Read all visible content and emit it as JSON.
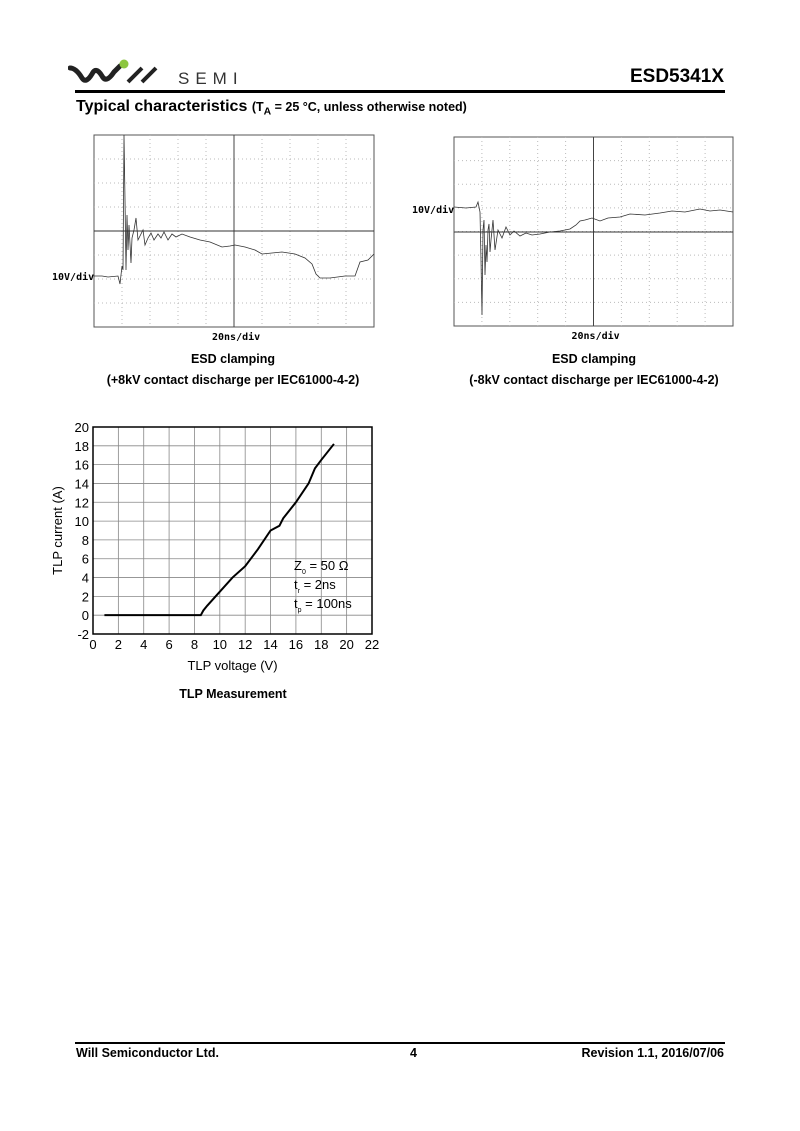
{
  "header": {
    "logo_text": "Will SEMI",
    "logo_semi": "SEMI",
    "part_number": "ESD5341X",
    "brand_color": "#8dc63f"
  },
  "section": {
    "title": "Typical characteristics",
    "condition_prefix": "(T",
    "condition_sub": "A",
    "condition_rest": " = 25 °C, unless otherwise noted)"
  },
  "scope_pos": {
    "vscale": "10V/div",
    "hscale": "20ns/div",
    "caption_line1": "ESD clamping",
    "caption_line2": "(+8kV contact discharge per IEC61000-4-2)"
  },
  "scope_neg": {
    "vscale": "10V/div",
    "hscale": "20ns/div",
    "caption_line1": "ESD clamping",
    "caption_line2": "(-8kV contact discharge per IEC61000-4-2)"
  },
  "chart_data": {
    "type": "line",
    "title": "",
    "xlabel": "TLP voltage (V)",
    "ylabel": "TLP current (A)",
    "xlim": [
      0,
      22
    ],
    "ylim": [
      -2,
      20
    ],
    "xticks": [
      0,
      2,
      4,
      6,
      8,
      10,
      12,
      14,
      16,
      18,
      20,
      22
    ],
    "yticks": [
      -2,
      0,
      2,
      4,
      6,
      8,
      10,
      12,
      14,
      16,
      18,
      20
    ],
    "grid": true,
    "x": [
      0.9,
      8.5,
      8.7,
      9.0,
      10.0,
      11.0,
      12.0,
      13.0,
      14.0,
      14.7,
      15.0,
      16.0,
      17.0,
      17.5,
      18.0,
      19.0
    ],
    "y": [
      0,
      0,
      0.5,
      1.0,
      2.5,
      4.0,
      5.2,
      7.0,
      9.0,
      9.5,
      10.3,
      12.0,
      14.0,
      15.6,
      16.5,
      18.2
    ],
    "annotations": [
      {
        "main": "Z",
        "sub": "0",
        "rest": " = 50 Ω"
      },
      {
        "main": "t",
        "sub": "r",
        "rest": " = 2ns"
      },
      {
        "main": "t",
        "sub": "p",
        "rest": " = 100ns"
      }
    ],
    "caption": "TLP Measurement"
  },
  "footer": {
    "company": "Will Semiconductor Ltd.",
    "page": "4",
    "revision": "Revision 1.1, 2016/07/06"
  }
}
